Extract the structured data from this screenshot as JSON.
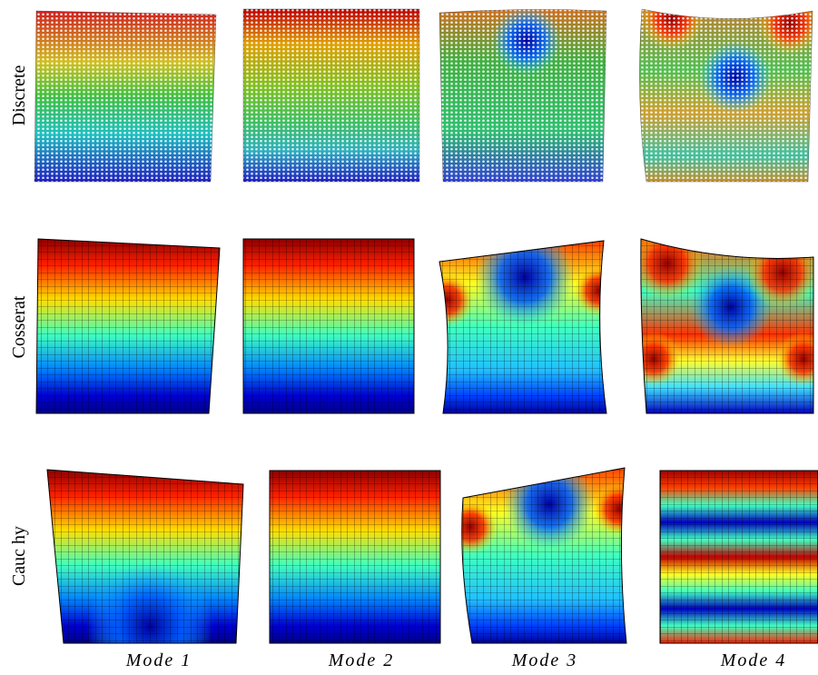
{
  "row_labels": [
    "Discrete",
    "Cosserat",
    "Cauc hy"
  ],
  "column_labels": [
    "Mode 1",
    "Mode 2",
    "Mode 3",
    "Mode 4"
  ]
}
